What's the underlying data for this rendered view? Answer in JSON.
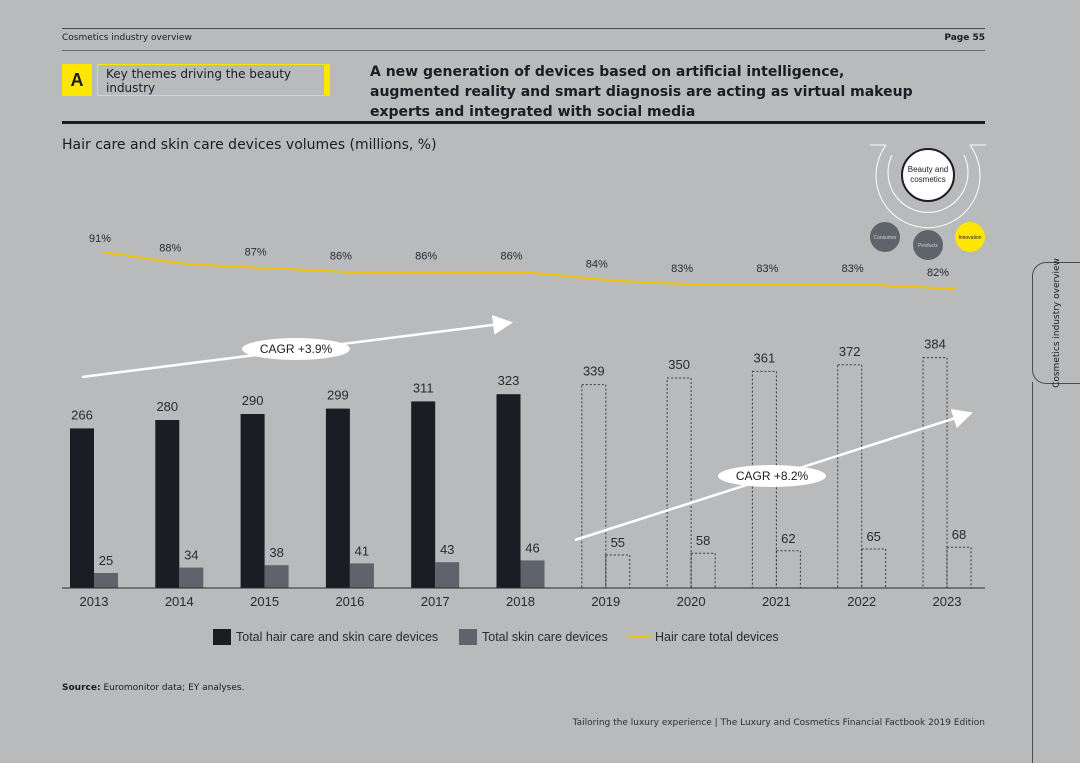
{
  "header": {
    "section": "Cosmetics industry overview",
    "page": "Page 55"
  },
  "theme": {
    "badge": "A",
    "label": "Key themes driving the beauty industry",
    "headline": "A new generation of devices based on artificial intelligence, augmented reality and smart diagnosis are acting as virtual makeup experts and integrated with social media"
  },
  "diagram": {
    "center": "Beauty and cosmetics",
    "nodes": [
      "Consumer",
      "Products",
      "Innovation"
    ]
  },
  "colors": {
    "total": "#1c1c24",
    "skin": "#5f636c",
    "hair": "#f2c200",
    "accent": "#ffe600"
  },
  "chart_data": {
    "type": "bar",
    "title": "Hair care and skin care devices volumes (millions, %)",
    "categories": [
      "2013",
      "2014",
      "2015",
      "2016",
      "2017",
      "2018",
      "2019",
      "2020",
      "2021",
      "2022",
      "2023"
    ],
    "forecast_from": "2019",
    "series": [
      {
        "name": "Total hair care and skin care devices",
        "type": "bar",
        "values": [
          266,
          280,
          290,
          299,
          311,
          323,
          339,
          350,
          361,
          372,
          384
        ]
      },
      {
        "name": "Total skin care devices",
        "type": "bar",
        "values": [
          25,
          34,
          38,
          41,
          43,
          46,
          55,
          58,
          62,
          65,
          68
        ]
      },
      {
        "name": "Hair care total devices",
        "type": "line",
        "unit": "%",
        "values": [
          91,
          88,
          87,
          86,
          86,
          86,
          84,
          83,
          83,
          83,
          82
        ]
      }
    ],
    "annotations": [
      {
        "text": "CAGR +3.9%",
        "period": "2013-2018"
      },
      {
        "text": "CAGR +8.2%",
        "period": "2019-2023"
      }
    ],
    "legend": [
      "Total hair care and skin care devices",
      "Total skin care devices",
      "Hair care total devices"
    ],
    "ylim": [
      0,
      400
    ]
  },
  "source": {
    "label": "Source:",
    "text": "Euromonitor data; EY analyses."
  },
  "footer": "Tailoring the luxury experience | The Luxury and Cosmetics Financial Factbook 2019 Edition",
  "side_tab": "Cosmetics industry overview"
}
